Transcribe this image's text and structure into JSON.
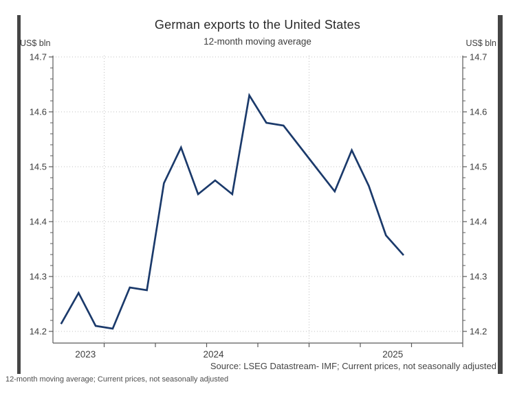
{
  "chart": {
    "title": "German exports to the United States",
    "subtitle": "12-month moving average",
    "unit_label_left": "US$ bln",
    "unit_label_right": "US$ bln",
    "source": "Source: LSEG Datastream- IMF; Current prices, not seasonally adjusted"
  },
  "page": {
    "footnote": "12-month moving average; Current prices, not seasonally adjusted"
  },
  "chart_data": {
    "type": "line",
    "title": "German exports to the United States",
    "subtitle": "12-month moving average",
    "ylabel": "US$ bln",
    "ylim": [
      14.2,
      14.7
    ],
    "y_ticks": [
      14.2,
      14.3,
      14.4,
      14.5,
      14.6,
      14.7
    ],
    "y_minor_tick_step": 0.02,
    "x_span": {
      "start": "Oct 2023",
      "end": "Oct 2025",
      "months_visible": 24
    },
    "x_quarter_tick_boundaries": [
      3,
      6,
      9,
      12,
      15,
      18,
      21,
      24
    ],
    "x_gridline_boundaries": [
      3,
      15
    ],
    "x_year_labels": [
      {
        "label": "2023",
        "span": [
          0,
          3
        ]
      },
      {
        "label": "2024",
        "span": [
          3,
          15
        ]
      },
      {
        "label": "2025",
        "span": [
          15,
          24
        ]
      }
    ],
    "grid": {
      "horizontal": "dotted at each 0.1",
      "vertical": "dotted at January year boundaries"
    },
    "legend_position": "none",
    "series": [
      {
        "name": "German exports to the United States, 12-month moving average",
        "color": "#1b3a6b",
        "x": [
          "Oct 2023",
          "Nov 2023",
          "Dec 2023",
          "Jan 2024",
          "Feb 2024",
          "Mar 2024",
          "Apr 2024",
          "May 2024",
          "Jun 2024",
          "Jul 2024",
          "Aug 2024",
          "Sep 2024",
          "Oct 2024",
          "Nov 2024",
          "Dec 2024",
          "Jan 2025",
          "Feb 2025",
          "Mar 2025",
          "Apr 2025",
          "May 2025",
          "Jun 2025"
        ],
        "values": [
          14.215,
          14.27,
          14.21,
          14.205,
          14.28,
          14.275,
          14.47,
          14.535,
          14.45,
          14.475,
          14.45,
          14.63,
          14.58,
          14.575,
          14.535,
          14.495,
          14.455,
          14.53,
          14.465,
          14.375,
          14.34
        ]
      }
    ],
    "source": "Source: LSEG Datastream- IMF; Current prices, not seasonally adjusted"
  },
  "colors": {
    "line": "#1b3a6b",
    "axis": "#595959",
    "gridline": "#bfbfbf",
    "tick_label": "#3d3d3d",
    "frame_bar": "#454545"
  }
}
